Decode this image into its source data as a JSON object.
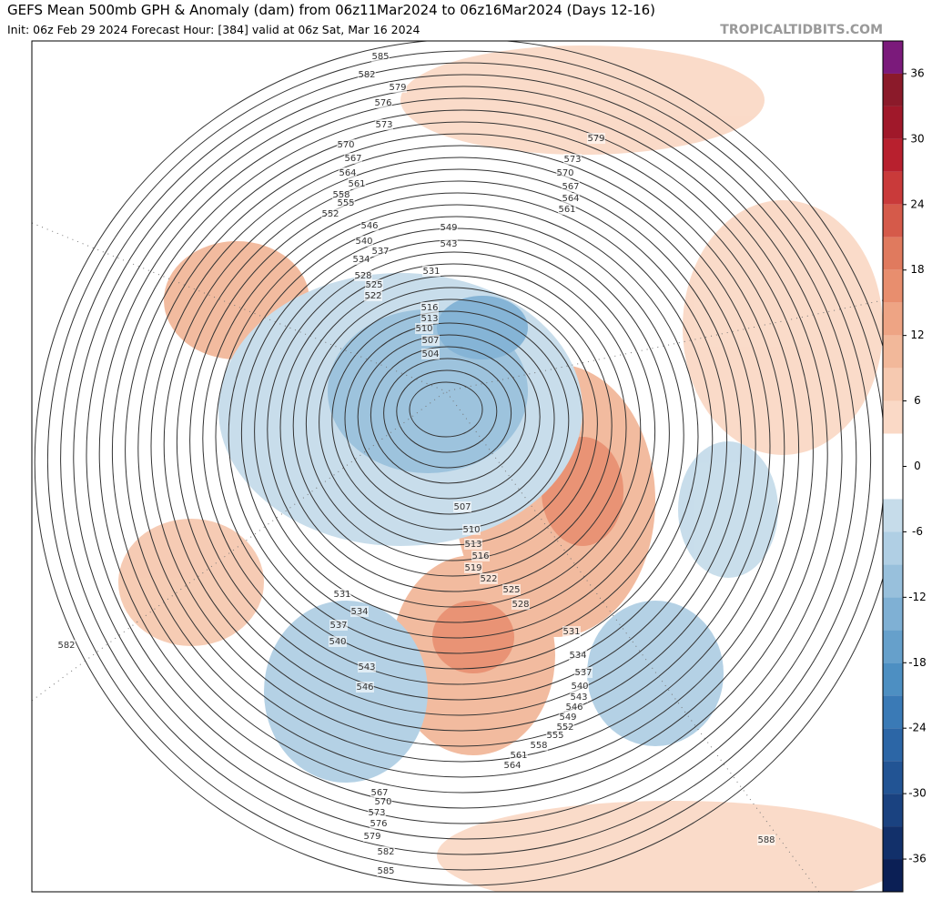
{
  "header": {
    "title": "GEFS Mean 500mb GPH & Anomaly (dam) from 06z11Mar2024 to 06z16Mar2024 (Days 12-16)",
    "subtitle": "Init: 06z Feb 29 2024   Forecast Hour: [384]   valid at 06z Sat, Mar 16 2024",
    "site": "TROPICALTIDBITS.COM"
  },
  "colorbar": {
    "lim": [
      -39,
      39
    ],
    "ticks": [
      36,
      30,
      24,
      18,
      12,
      6,
      0,
      -6,
      -12,
      -18,
      -24,
      -30,
      -36
    ],
    "colors": [
      "#7b1a7b",
      "#8b1a2a",
      "#a0182a",
      "#b8202e",
      "#c93a3a",
      "#d55a4a",
      "#e07a5e",
      "#e88e6e",
      "#eea484",
      "#f2b89a",
      "#f6c9b0",
      "#fad9c6",
      "#ffffff",
      "#ffffff",
      "#c6dcea",
      "#b0cfe4",
      "#98c0dc",
      "#7fb0d4",
      "#66a0cb",
      "#4d8fc2",
      "#3a7ab6",
      "#2c66a6",
      "#225494",
      "#1a4280",
      "#12306a",
      "#0b1f55"
    ]
  },
  "contour_labels": [
    585,
    582,
    579,
    576,
    573,
    570,
    567,
    564,
    561,
    558,
    555,
    552,
    546,
    540,
    537,
    534,
    528,
    525,
    522,
    549,
    543,
    531,
    516,
    513,
    510,
    507,
    504,
    579,
    573,
    570,
    567,
    564,
    561,
    507,
    510,
    513,
    516,
    519,
    522,
    525,
    528,
    531,
    534,
    537,
    540,
    543,
    546,
    531,
    534,
    537,
    540,
    543,
    546,
    549,
    552,
    555,
    558,
    561,
    564,
    567,
    570,
    573,
    576,
    579,
    582,
    585,
    588,
    582
  ]
}
